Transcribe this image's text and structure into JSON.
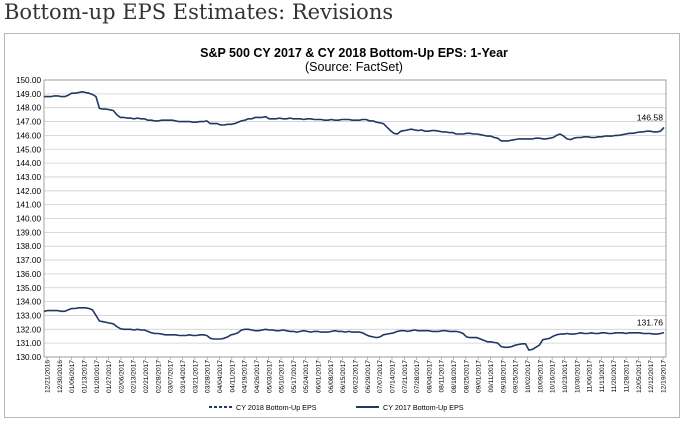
{
  "page": {
    "heading": "Bottom-up EPS Estimates: Revisions"
  },
  "chart_data": {
    "type": "line",
    "title": "S&P 500 CY 2017 & CY 2018 Bottom-Up  EPS: 1-Year",
    "subtitle": "(Source: FactSet)",
    "xlabel": "",
    "ylabel": "",
    "ylim": [
      130,
      150
    ],
    "y_ticks": [
      "150.00",
      "149.00",
      "148.00",
      "147.00",
      "146.00",
      "145.00",
      "144.00",
      "143.00",
      "142.00",
      "141.00",
      "140.00",
      "139.00",
      "138.00",
      "137.00",
      "136.00",
      "135.00",
      "134.00",
      "133.00",
      "132.00",
      "131.00",
      "130.00"
    ],
    "x_ticks": [
      "12/21/2016",
      "12/30/2016",
      "01/06/2017",
      "01/13/2017",
      "01/20/2017",
      "01/27/2017",
      "02/06/2017",
      "02/13/2017",
      "02/21/2017",
      "02/28/2017",
      "03/07/2017",
      "03/14/2017",
      "03/21/2017",
      "03/28/2017",
      "04/04/2017",
      "04/11/2017",
      "04/19/2017",
      "04/26/2017",
      "05/03/2017",
      "05/10/2017",
      "05/17/2017",
      "05/24/2017",
      "06/01/2017",
      "06/08/2017",
      "06/15/2017",
      "06/22/2017",
      "06/29/2017",
      "07/07/2017",
      "07/14/2017",
      "07/21/2017",
      "07/28/2017",
      "08/04/2017",
      "08/11/2017",
      "08/18/2017",
      "08/25/2017",
      "09/01/2017",
      "09/11/2017",
      "09/18/2017",
      "09/25/2017",
      "10/02/2017",
      "10/09/2017",
      "10/16/2017",
      "10/23/2017",
      "10/30/2017",
      "11/06/2017",
      "11/13/2017",
      "11/20/2017",
      "11/28/2017",
      "12/05/2017",
      "12/12/2017",
      "12/19/2017"
    ],
    "grid": true,
    "legend_position": "bottom",
    "series": [
      {
        "name": "CY 2018 Bottom-Up EPS",
        "color": "#1f3864",
        "dash": true,
        "last_label": "146.58",
        "values": [
          148.8,
          148.8,
          148.8,
          148.85,
          148.85,
          148.8,
          148.8,
          148.9,
          149.05,
          149.05,
          149.1,
          149.15,
          149.1,
          149.05,
          148.95,
          148.8,
          147.95,
          147.9,
          147.9,
          147.85,
          147.8,
          147.5,
          147.3,
          147.3,
          147.25,
          147.25,
          147.2,
          147.25,
          147.2,
          147.2,
          147.1,
          147.1,
          147.05,
          147.05,
          147.1,
          147.1,
          147.1,
          147.1,
          147.05,
          147.0,
          147.0,
          147.0,
          147.0,
          146.95,
          146.95,
          147.0,
          147.0,
          147.05,
          146.85,
          146.85,
          146.85,
          146.75,
          146.75,
          146.8,
          146.8,
          146.85,
          146.95,
          147.05,
          147.1,
          147.2,
          147.2,
          147.3,
          147.3,
          147.3,
          147.35,
          147.2,
          147.2,
          147.2,
          147.25,
          147.2,
          147.2,
          147.25,
          147.2,
          147.2,
          147.2,
          147.15,
          147.2,
          147.2,
          147.15,
          147.15,
          147.15,
          147.1,
          147.1,
          147.15,
          147.1,
          147.1,
          147.15,
          147.15,
          147.15,
          147.1,
          147.1,
          147.1,
          147.15,
          147.15,
          147.05,
          147.05,
          146.95,
          146.9,
          146.85,
          146.6,
          146.35,
          146.15,
          146.1,
          146.3,
          146.35,
          146.4,
          146.45,
          146.4,
          146.35,
          146.4,
          146.3,
          146.3,
          146.35,
          146.35,
          146.3,
          146.25,
          146.25,
          146.2,
          146.2,
          146.1,
          146.1,
          146.1,
          146.15,
          146.15,
          146.1,
          146.1,
          146.05,
          146.0,
          145.95,
          145.95,
          145.85,
          145.8,
          145.6,
          145.6,
          145.6,
          145.65,
          145.7,
          145.75,
          145.75,
          145.75,
          145.75,
          145.75,
          145.8,
          145.8,
          145.75,
          145.75,
          145.8,
          145.85,
          146.0,
          146.1,
          145.95,
          145.75,
          145.7,
          145.8,
          145.85,
          145.85,
          145.9,
          145.9,
          145.85,
          145.85,
          145.9,
          145.9,
          145.95,
          145.95,
          145.95,
          146.0,
          146.0,
          146.05,
          146.1,
          146.15,
          146.15,
          146.2,
          146.25,
          146.25,
          146.3,
          146.3,
          146.25,
          146.25,
          146.3,
          146.58
        ]
      },
      {
        "name": "CY 2017 Bottom-Up EPS",
        "color": "#1f3864",
        "dash": false,
        "last_label": "131.76",
        "values": [
          133.3,
          133.35,
          133.35,
          133.35,
          133.35,
          133.3,
          133.3,
          133.4,
          133.5,
          133.5,
          133.55,
          133.55,
          133.55,
          133.5,
          133.4,
          133.0,
          132.6,
          132.55,
          132.5,
          132.45,
          132.4,
          132.2,
          132.05,
          132.0,
          132.0,
          132.0,
          131.95,
          132.0,
          131.95,
          131.95,
          131.85,
          131.75,
          131.7,
          131.7,
          131.65,
          131.6,
          131.6,
          131.6,
          131.6,
          131.55,
          131.55,
          131.55,
          131.6,
          131.55,
          131.55,
          131.6,
          131.6,
          131.55,
          131.35,
          131.3,
          131.3,
          131.3,
          131.35,
          131.45,
          131.6,
          131.65,
          131.75,
          131.95,
          132.0,
          132.0,
          131.95,
          131.9,
          131.9,
          131.95,
          132.0,
          131.95,
          131.95,
          131.9,
          131.9,
          131.95,
          131.9,
          131.85,
          131.85,
          131.8,
          131.85,
          131.9,
          131.85,
          131.8,
          131.85,
          131.85,
          131.8,
          131.8,
          131.8,
          131.85,
          131.9,
          131.85,
          131.85,
          131.8,
          131.85,
          131.8,
          131.8,
          131.8,
          131.75,
          131.6,
          131.5,
          131.45,
          131.4,
          131.45,
          131.6,
          131.65,
          131.7,
          131.75,
          131.85,
          131.9,
          131.9,
          131.85,
          131.9,
          131.95,
          131.9,
          131.9,
          131.9,
          131.9,
          131.85,
          131.85,
          131.85,
          131.9,
          131.9,
          131.85,
          131.85,
          131.85,
          131.8,
          131.7,
          131.45,
          131.4,
          131.4,
          131.4,
          131.3,
          131.2,
          131.1,
          131.1,
          131.05,
          131.0,
          130.75,
          130.7,
          130.7,
          130.75,
          130.85,
          130.9,
          130.95,
          130.95,
          130.5,
          130.55,
          130.7,
          130.85,
          131.25,
          131.3,
          131.35,
          131.5,
          131.6,
          131.65,
          131.65,
          131.7,
          131.65,
          131.65,
          131.7,
          131.75,
          131.7,
          131.7,
          131.75,
          131.7,
          131.7,
          131.75,
          131.75,
          131.7,
          131.7,
          131.75,
          131.75,
          131.75,
          131.7,
          131.75,
          131.75,
          131.75,
          131.75,
          131.7,
          131.7,
          131.7,
          131.65,
          131.65,
          131.7,
          131.76
        ]
      }
    ]
  }
}
